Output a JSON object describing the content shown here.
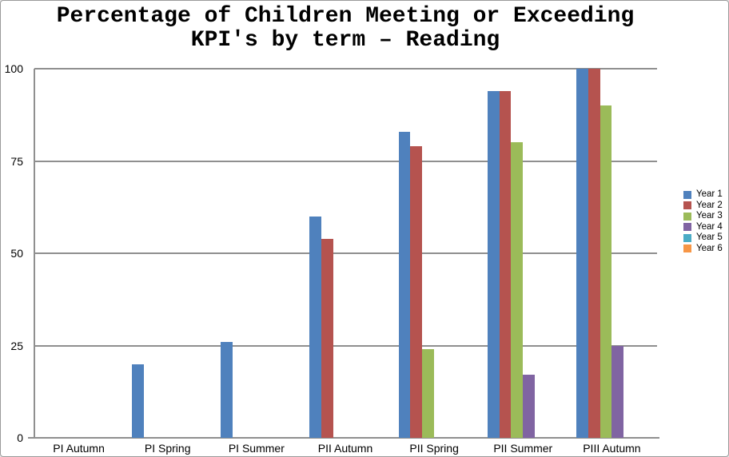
{
  "window": {
    "background": "#ffffff",
    "border_color": "#9a9a9a"
  },
  "chart_data": {
    "type": "bar",
    "title_lines": [
      "Percentage of Children Meeting or Exceeding",
      "KPI's by term – Reading"
    ],
    "categories": [
      "PI Autumn",
      "PI Spring",
      "PI Summer",
      "PII Autumn",
      "PII Spring",
      "PII Summer",
      "PIII Autumn"
    ],
    "series": [
      {
        "name": "Year 1",
        "color": "#4F81BD",
        "values": [
          0,
          20,
          26,
          60,
          83,
          94,
          100
        ]
      },
      {
        "name": "Year 2",
        "color": "#B5534F",
        "values": [
          0,
          0,
          0,
          54,
          79,
          94,
          100
        ]
      },
      {
        "name": "Year 3",
        "color": "#9BBB59",
        "values": [
          0,
          0,
          0,
          0,
          24,
          80,
          90
        ]
      },
      {
        "name": "Year 4",
        "color": "#8064A2",
        "values": [
          0,
          0,
          0,
          0,
          0,
          17,
          25
        ]
      },
      {
        "name": "Year 5",
        "color": "#4BACC6",
        "values": [
          0,
          0,
          0,
          0,
          0,
          0,
          0
        ]
      },
      {
        "name": "Year 6",
        "color": "#F79646",
        "values": [
          0,
          0,
          0,
          0,
          0,
          0,
          0
        ]
      }
    ],
    "xlabel": "",
    "ylabel": "",
    "ylim": [
      0,
      100
    ],
    "y_ticks": [
      0,
      25,
      50,
      75,
      100
    ],
    "grid": true,
    "legend_position": "right",
    "colors": {
      "gridline": "#8f8f8f",
      "axis": "#8f8f8f",
      "text": "#000000"
    }
  }
}
